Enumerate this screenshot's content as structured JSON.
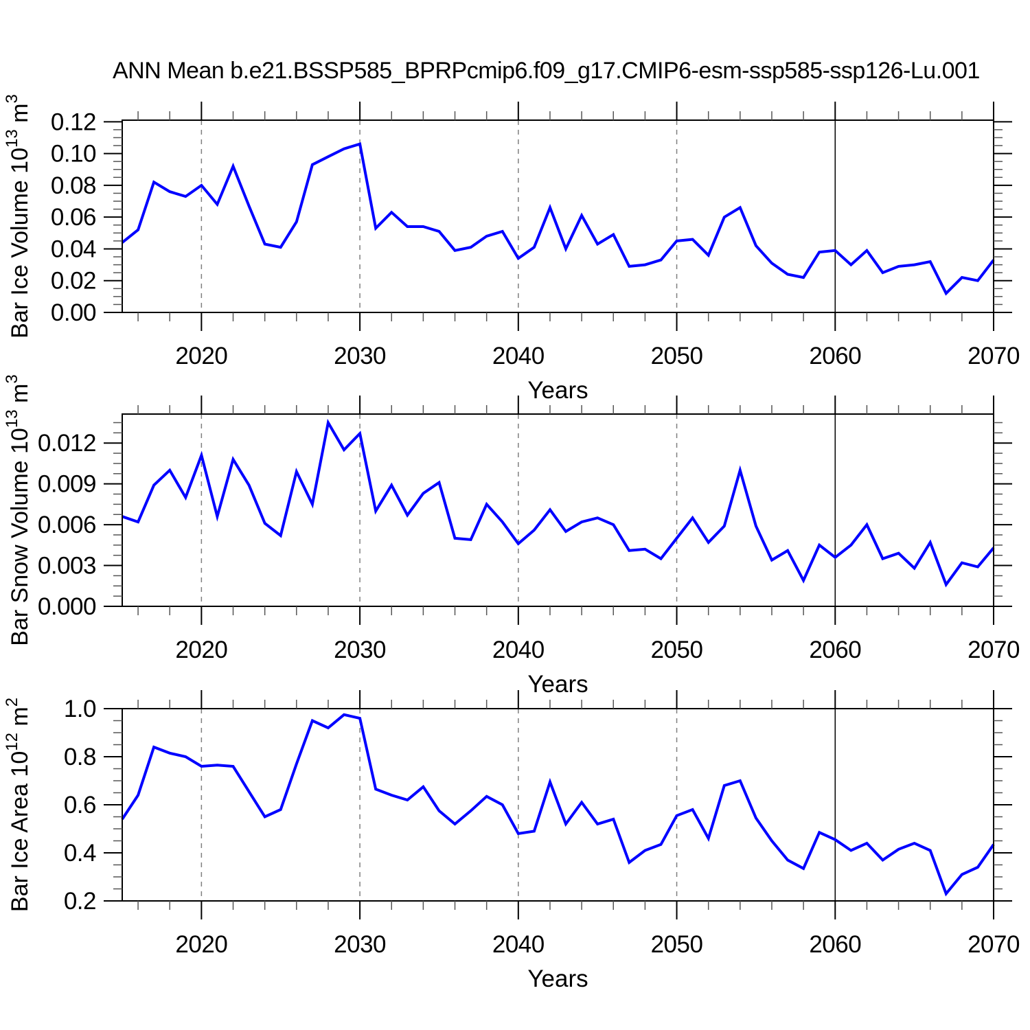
{
  "title": "ANN Mean b.e21.BSSP585_BPRPcmip6.f09_g17.CMIP6-esm-ssp585-ssp126-Lu.001",
  "colors": {
    "line": "#0000ff",
    "dashed_grid": "#7f7f7f",
    "solid_grid": "#000000",
    "axis": "#000000",
    "minor_tick": "#555555"
  },
  "x_axis": {
    "label": "Years",
    "range": [
      2015,
      2070
    ],
    "major_ticks": [
      {
        "v": 2020,
        "label": "2020"
      },
      {
        "v": 2030,
        "label": "2030"
      },
      {
        "v": 2040,
        "label": "2040"
      },
      {
        "v": 2050,
        "label": "2050"
      },
      {
        "v": 2060,
        "label": "2060"
      },
      {
        "v": 2070,
        "label": "2070"
      }
    ],
    "minor_step": 2,
    "dashed_gridlines": [
      2020,
      2030,
      2040,
      2050
    ],
    "solid_gridline": 2060
  },
  "years": [
    2015,
    2016,
    2017,
    2018,
    2019,
    2020,
    2021,
    2022,
    2023,
    2024,
    2025,
    2026,
    2027,
    2028,
    2029,
    2030,
    2031,
    2032,
    2033,
    2034,
    2035,
    2036,
    2037,
    2038,
    2039,
    2040,
    2041,
    2042,
    2043,
    2044,
    2045,
    2046,
    2047,
    2048,
    2049,
    2050,
    2051,
    2052,
    2053,
    2054,
    2055,
    2056,
    2057,
    2058,
    2059,
    2060,
    2061,
    2062,
    2063,
    2064,
    2065,
    2066,
    2067,
    2068,
    2069,
    2070
  ],
  "chart_data": [
    {
      "type": "line",
      "name": "bar-ice-volume",
      "ylabel": {
        "prefix": "Bar Ice Volume 10",
        "exp": "13",
        "unit": " m",
        "unit_exp": "3"
      },
      "ylim": [
        0,
        0.121
      ],
      "yticks": [
        {
          "v": 0.0,
          "label": "0.00"
        },
        {
          "v": 0.02,
          "label": "0.02"
        },
        {
          "v": 0.04,
          "label": "0.04"
        },
        {
          "v": 0.06,
          "label": "0.06"
        },
        {
          "v": 0.08,
          "label": "0.08"
        },
        {
          "v": 0.1,
          "label": "0.10"
        },
        {
          "v": 0.12,
          "label": "0.12"
        }
      ],
      "y_minor_step": 0.005,
      "values": [
        0.044,
        0.052,
        0.082,
        0.076,
        0.073,
        0.08,
        0.068,
        0.092,
        0.067,
        0.043,
        0.041,
        0.057,
        0.093,
        0.098,
        0.103,
        0.106,
        0.053,
        0.063,
        0.054,
        0.054,
        0.051,
        0.039,
        0.041,
        0.048,
        0.051,
        0.034,
        0.041,
        0.066,
        0.04,
        0.061,
        0.043,
        0.049,
        0.029,
        0.03,
        0.033,
        0.045,
        0.046,
        0.036,
        0.06,
        0.066,
        0.042,
        0.031,
        0.024,
        0.022,
        0.038,
        0.039,
        0.03,
        0.039,
        0.025,
        0.029,
        0.03,
        0.032,
        0.012,
        0.022,
        0.02,
        0.033
      ]
    },
    {
      "type": "line",
      "name": "bar-snow-volume",
      "ylabel": {
        "prefix": "Bar Snow Volume 10",
        "exp": "13",
        "unit": " m",
        "unit_exp": "3"
      },
      "ylim": [
        0,
        0.01413
      ],
      "yticks": [
        {
          "v": 0.0,
          "label": "0.000"
        },
        {
          "v": 0.003,
          "label": "0.003"
        },
        {
          "v": 0.006,
          "label": "0.006"
        },
        {
          "v": 0.009,
          "label": "0.009"
        },
        {
          "v": 0.012,
          "label": "0.012"
        }
      ],
      "y_minor_step": 0.00075,
      "values": [
        0.0066,
        0.0062,
        0.0089,
        0.01,
        0.008,
        0.0111,
        0.0066,
        0.0108,
        0.0089,
        0.0061,
        0.0052,
        0.0099,
        0.0075,
        0.0135,
        0.0115,
        0.0127,
        0.007,
        0.0089,
        0.0067,
        0.0083,
        0.0091,
        0.005,
        0.0049,
        0.0075,
        0.0062,
        0.0046,
        0.0056,
        0.0071,
        0.0055,
        0.0062,
        0.0065,
        0.006,
        0.0041,
        0.0042,
        0.0035,
        0.005,
        0.0065,
        0.0047,
        0.0059,
        0.01,
        0.0059,
        0.0034,
        0.0041,
        0.0019,
        0.0045,
        0.0036,
        0.0045,
        0.006,
        0.0035,
        0.0039,
        0.0028,
        0.0047,
        0.0016,
        0.0032,
        0.0029,
        0.0043
      ]
    },
    {
      "type": "line",
      "name": "bar-ice-area",
      "ylabel": {
        "prefix": "Bar Ice Area 10",
        "exp": "12",
        "unit": " m",
        "unit_exp": "2"
      },
      "ylim": [
        0.2,
        1.0
      ],
      "yticks": [
        {
          "v": 0.2,
          "label": "0.2"
        },
        {
          "v": 0.4,
          "label": "0.4"
        },
        {
          "v": 0.6,
          "label": "0.6"
        },
        {
          "v": 0.8,
          "label": "0.8"
        },
        {
          "v": 1.0,
          "label": "1.0"
        }
      ],
      "y_minor_step": 0.05,
      "values": [
        0.54,
        0.64,
        0.84,
        0.815,
        0.8,
        0.76,
        0.765,
        0.76,
        0.655,
        0.55,
        0.58,
        0.77,
        0.95,
        0.92,
        0.975,
        0.96,
        0.665,
        0.64,
        0.62,
        0.675,
        0.575,
        0.52,
        0.575,
        0.635,
        0.6,
        0.48,
        0.49,
        0.695,
        0.52,
        0.61,
        0.52,
        0.54,
        0.36,
        0.41,
        0.435,
        0.555,
        0.58,
        0.46,
        0.68,
        0.7,
        0.545,
        0.45,
        0.37,
        0.335,
        0.485,
        0.455,
        0.41,
        0.44,
        0.37,
        0.415,
        0.44,
        0.41,
        0.23,
        0.31,
        0.34,
        0.435
      ]
    }
  ]
}
